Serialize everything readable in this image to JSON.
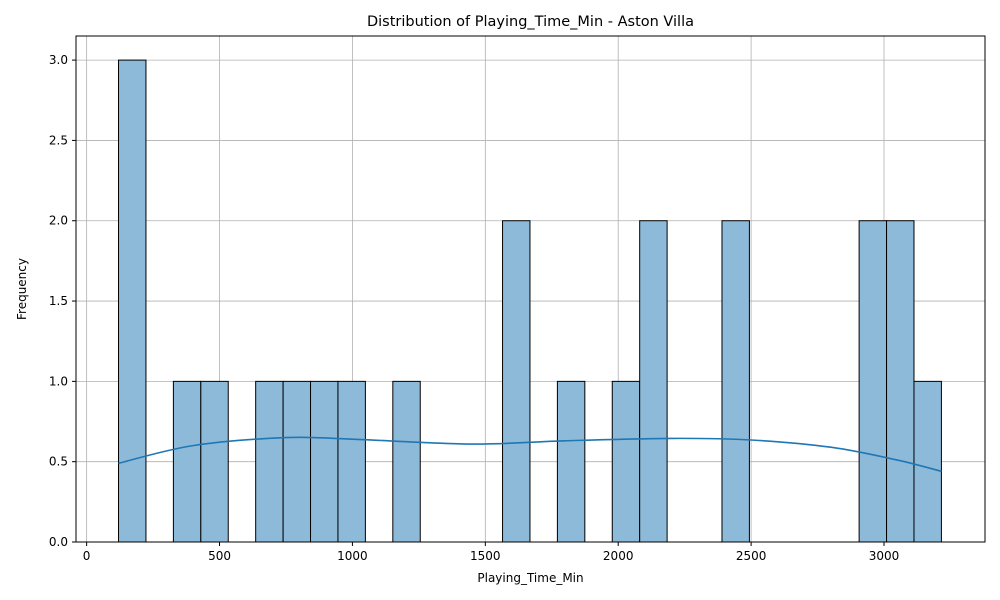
{
  "chart_data": {
    "type": "bar",
    "title": "Distribution of Playing_Time_Min - Aston Villa",
    "xlabel": "Playing_Time_Min",
    "ylabel": "Frequency",
    "xlim": [
      -40,
      3380
    ],
    "ylim": [
      0,
      3.15
    ],
    "xticks": [
      0,
      500,
      1000,
      1500,
      2000,
      2500,
      3000
    ],
    "yticks": [
      0.0,
      0.5,
      1.0,
      1.5,
      2.0,
      2.5,
      3.0
    ],
    "xtick_labels": [
      "0",
      "500",
      "1000",
      "1500",
      "2000",
      "2500",
      "3000"
    ],
    "ytick_labels": [
      "0.0",
      "0.5",
      "1.0",
      "1.5",
      "2.0",
      "2.5",
      "3.0"
    ],
    "grid": true,
    "bar_color": "#8ebad9",
    "edge_color": "#000000",
    "kde_color": "#1f77b4",
    "bins": {
      "start": 120,
      "width": 103.2,
      "counts": [
        3,
        0,
        1,
        1,
        0,
        1,
        1,
        1,
        1,
        0,
        1,
        0,
        0,
        0,
        2,
        0,
        1,
        0,
        1,
        2,
        0,
        0,
        2,
        0,
        0,
        0,
        0,
        2,
        2,
        1
      ]
    },
    "kde": {
      "x": [
        120,
        400,
        750,
        1000,
        1450,
        1800,
        2200,
        2500,
        2800,
        3050,
        3216
      ],
      "y": [
        0.49,
        0.6,
        0.65,
        0.64,
        0.61,
        0.63,
        0.645,
        0.635,
        0.59,
        0.51,
        0.44
      ]
    }
  }
}
